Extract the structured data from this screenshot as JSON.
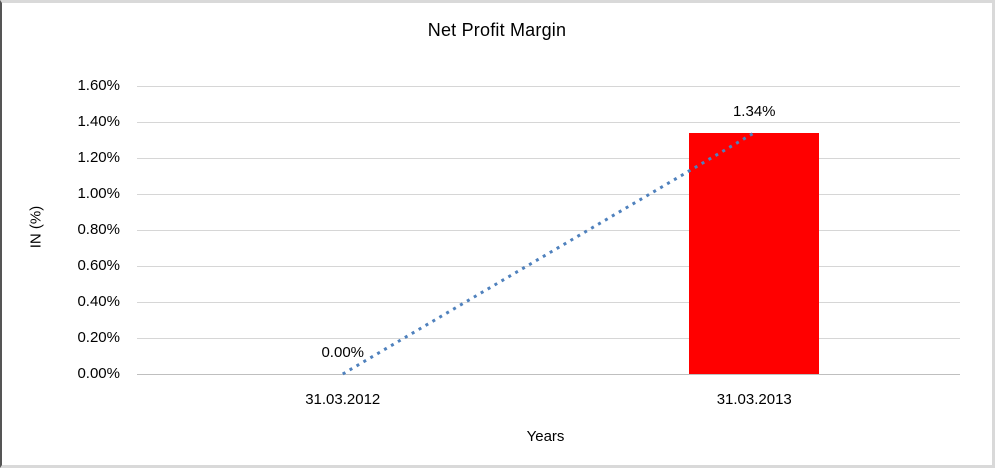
{
  "chart_data": {
    "type": "bar",
    "title": "Net Profit Margin",
    "xlabel": "Years",
    "ylabel": "IN (%)",
    "categories": [
      "31.03.2012",
      "31.03.2013"
    ],
    "values": [
      0.0,
      1.34
    ],
    "data_labels": [
      "0.00%",
      "1.34%"
    ],
    "ylim": [
      0,
      1.6
    ],
    "ytick_step": 0.2,
    "ytick_labels": [
      "0.00%",
      "0.20%",
      "0.40%",
      "0.60%",
      "0.80%",
      "1.00%",
      "1.20%",
      "1.40%",
      "1.60%"
    ],
    "grid": true,
    "legend": "none",
    "bar_color": "#ff0000",
    "gridline_color": "#d6d6d6",
    "trendline": {
      "type": "linear",
      "style": "dotted",
      "color": "#4f81bd",
      "from": {
        "category": "31.03.2012",
        "value": 0.0
      },
      "to": {
        "category": "31.03.2013",
        "value": 1.34
      }
    }
  }
}
